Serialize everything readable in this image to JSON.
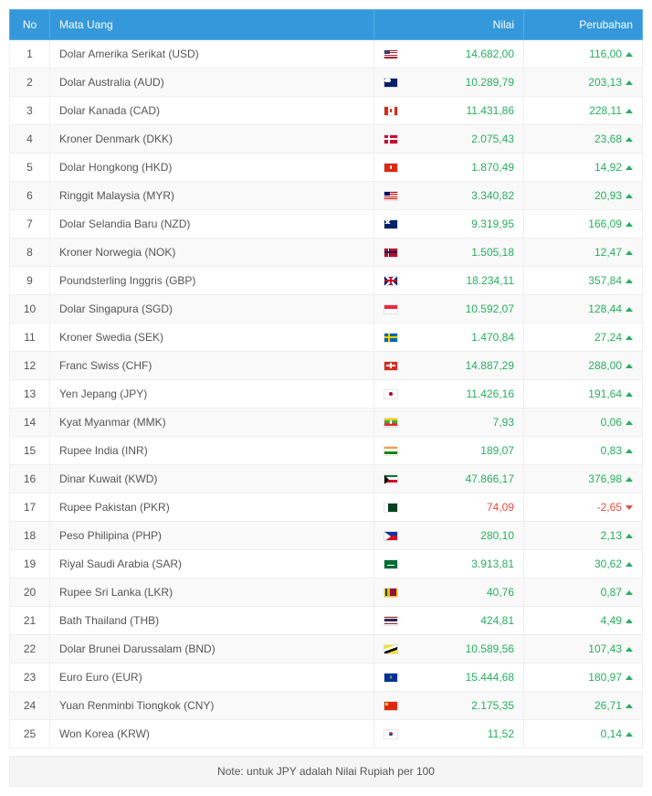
{
  "header": {
    "no": "No",
    "currency": "Mata Uang",
    "value": "Nilai",
    "change": "Perubahan"
  },
  "colors": {
    "header_bg": "#3498db",
    "positive": "#27ae60",
    "negative": "#e74c3c",
    "row_even": "#f9f9f9",
    "row_odd": "#ffffff",
    "border": "#eeeeee"
  },
  "note": "Note: untuk JPY adalah Nilai Rupiah per 100",
  "rows": [
    {
      "no": "1",
      "name": "Dolar Amerika Serikat (USD)",
      "flag": "us",
      "value": "14.682,00",
      "change": "116,00",
      "dir": "up"
    },
    {
      "no": "2",
      "name": "Dolar Australia (AUD)",
      "flag": "au",
      "value": "10.289,79",
      "change": "203,13",
      "dir": "up"
    },
    {
      "no": "3",
      "name": "Dolar Kanada (CAD)",
      "flag": "ca",
      "value": "11.431,86",
      "change": "228,11",
      "dir": "up"
    },
    {
      "no": "4",
      "name": "Kroner Denmark (DKK)",
      "flag": "dk",
      "value": "2.075,43",
      "change": "23,68",
      "dir": "up"
    },
    {
      "no": "5",
      "name": "Dolar Hongkong (HKD)",
      "flag": "hk",
      "value": "1.870,49",
      "change": "14,92",
      "dir": "up"
    },
    {
      "no": "6",
      "name": "Ringgit Malaysia (MYR)",
      "flag": "my",
      "value": "3.340,82",
      "change": "20,93",
      "dir": "up"
    },
    {
      "no": "7",
      "name": "Dolar Selandia Baru (NZD)",
      "flag": "nz",
      "value": "9.319,95",
      "change": "166,09",
      "dir": "up"
    },
    {
      "no": "8",
      "name": "Kroner Norwegia (NOK)",
      "flag": "no",
      "value": "1.505,18",
      "change": "12,47",
      "dir": "up"
    },
    {
      "no": "9",
      "name": "Poundsterling Inggris (GBP)",
      "flag": "gb",
      "value": "18.234,11",
      "change": "357,84",
      "dir": "up"
    },
    {
      "no": "10",
      "name": "Dolar Singapura (SGD)",
      "flag": "sg",
      "value": "10.592,07",
      "change": "128,44",
      "dir": "up"
    },
    {
      "no": "11",
      "name": "Kroner Swedia (SEK)",
      "flag": "se",
      "value": "1.470,84",
      "change": "27,24",
      "dir": "up"
    },
    {
      "no": "12",
      "name": "Franc Swiss (CHF)",
      "flag": "ch",
      "value": "14.887,29",
      "change": "288,00",
      "dir": "up"
    },
    {
      "no": "13",
      "name": "Yen Jepang (JPY)",
      "flag": "jp",
      "value": "11.426,16",
      "change": "191,64",
      "dir": "up"
    },
    {
      "no": "14",
      "name": "Kyat Myanmar (MMK)",
      "flag": "mm",
      "value": "7,93",
      "change": "0,06",
      "dir": "up"
    },
    {
      "no": "15",
      "name": "Rupee India (INR)",
      "flag": "in",
      "value": "189,07",
      "change": "0,83",
      "dir": "up"
    },
    {
      "no": "16",
      "name": "Dinar Kuwait (KWD)",
      "flag": "kw",
      "value": "47.866,17",
      "change": "376,98",
      "dir": "up"
    },
    {
      "no": "17",
      "name": "Rupee Pakistan (PKR)",
      "flag": "pk",
      "value": "74,09",
      "change": "-2,65",
      "dir": "down"
    },
    {
      "no": "18",
      "name": "Peso Philipina (PHP)",
      "flag": "ph",
      "value": "280,10",
      "change": "2,13",
      "dir": "up"
    },
    {
      "no": "19",
      "name": "Riyal Saudi Arabia (SAR)",
      "flag": "sa",
      "value": "3.913,81",
      "change": "30,62",
      "dir": "up"
    },
    {
      "no": "20",
      "name": "Rupee Sri Lanka (LKR)",
      "flag": "lk",
      "value": "40,76",
      "change": "0,87",
      "dir": "up"
    },
    {
      "no": "21",
      "name": "Bath Thailand (THB)",
      "flag": "th",
      "value": "424,81",
      "change": "4,49",
      "dir": "up"
    },
    {
      "no": "22",
      "name": "Dolar Brunei Darussalam (BND)",
      "flag": "bn",
      "value": "10.589,56",
      "change": "107,43",
      "dir": "up"
    },
    {
      "no": "23",
      "name": "Euro Euro (EUR)",
      "flag": "eu",
      "value": "15.444,68",
      "change": "180,97",
      "dir": "up"
    },
    {
      "no": "24",
      "name": "Yuan Renminbi Tiongkok (CNY)",
      "flag": "cn",
      "value": "2.175,35",
      "change": "26,71",
      "dir": "up"
    },
    {
      "no": "25",
      "name": "Won Korea (KRW)",
      "flag": "kr",
      "value": "11,52",
      "change": "0,14",
      "dir": "up"
    }
  ]
}
